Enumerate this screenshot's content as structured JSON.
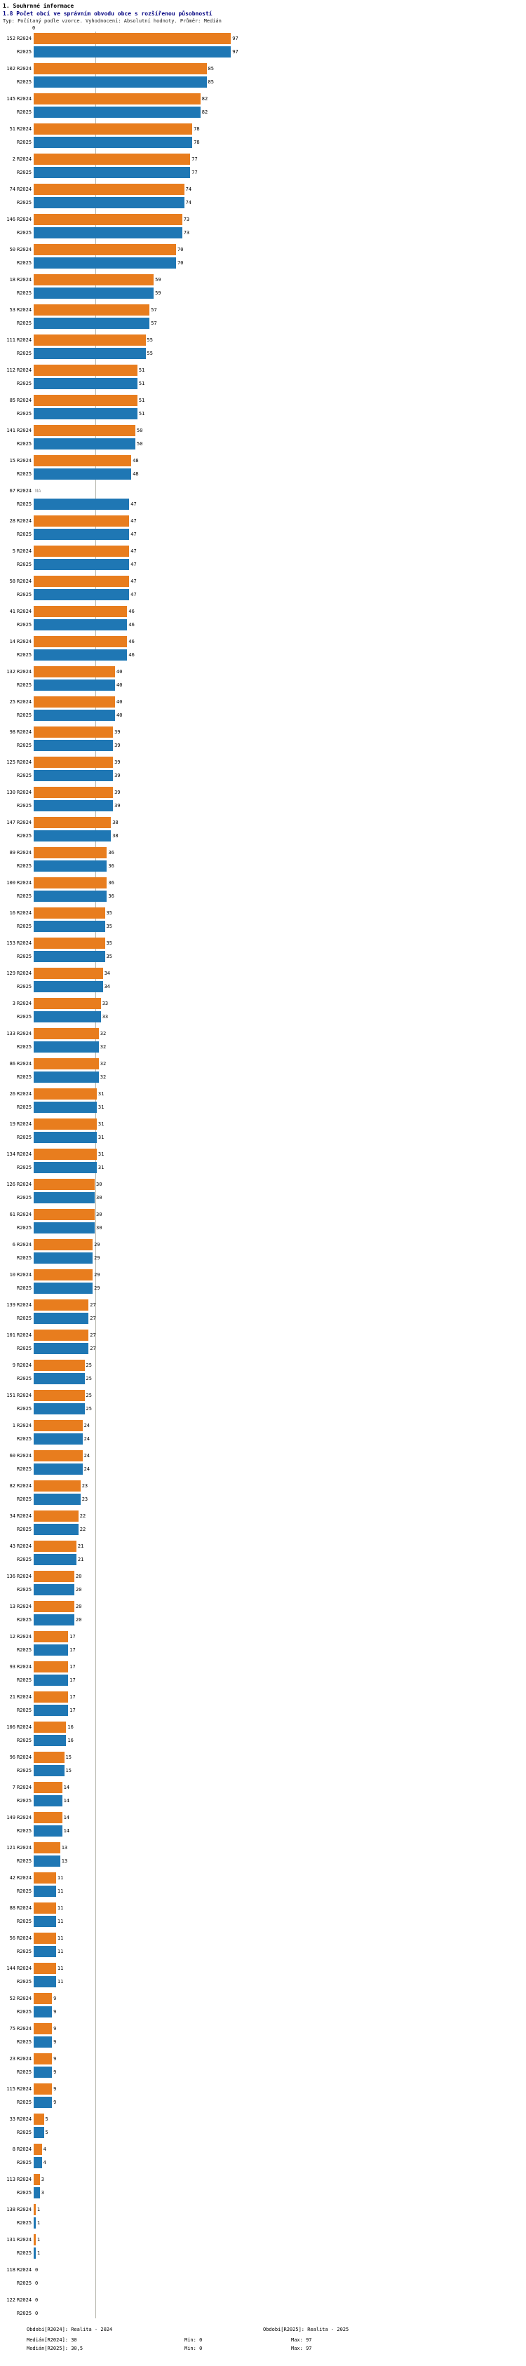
{
  "header": {
    "title": "1. Souhrnné informace",
    "subtitle": "1.8 Počet obcí ve správním obvodu obce s rozšířenou působností",
    "meta": "Typ: Počítaný podle vzorce. Vyhodnocení: Absolutní hodnoty. Průměr: Medián"
  },
  "chart_data": {
    "type": "bar",
    "orientation": "horizontal",
    "title": "1.8 Počet obcí ve správním obvodu obce s rozšířenou působností",
    "series_labels": [
      "R2024",
      "R2025"
    ],
    "colors": {
      "r2024": "#e87d1e",
      "r2025": "#1f77b4",
      "median_line": "#b4b4aa"
    },
    "axis_zero_label": "0",
    "na_label": "NA",
    "xlim": [
      0,
      97
    ],
    "median_r2024": 30,
    "median_r2025": 30.5,
    "legend_position": "bottom",
    "grid": false,
    "groups": [
      {
        "category": "152",
        "values": [
          97,
          97
        ]
      },
      {
        "category": "102",
        "values": [
          85,
          85
        ]
      },
      {
        "category": "145",
        "values": [
          82,
          82
        ]
      },
      {
        "category": "51",
        "values": [
          78,
          78
        ]
      },
      {
        "category": "2",
        "values": [
          77,
          77
        ]
      },
      {
        "category": "74",
        "values": [
          74,
          74
        ]
      },
      {
        "category": "146",
        "values": [
          73,
          73
        ]
      },
      {
        "category": "50",
        "values": [
          70,
          70
        ]
      },
      {
        "category": "18",
        "values": [
          59,
          59
        ]
      },
      {
        "category": "53",
        "values": [
          57,
          57
        ]
      },
      {
        "category": "111",
        "values": [
          55,
          55
        ]
      },
      {
        "category": "112",
        "values": [
          51,
          51
        ]
      },
      {
        "category": "85",
        "values": [
          51,
          51
        ]
      },
      {
        "category": "141",
        "values": [
          50,
          50
        ]
      },
      {
        "category": "15",
        "values": [
          48,
          48
        ]
      },
      {
        "category": "67",
        "values": [
          null,
          47
        ]
      },
      {
        "category": "28",
        "values": [
          47,
          47
        ]
      },
      {
        "category": "5",
        "values": [
          47,
          47
        ]
      },
      {
        "category": "58",
        "values": [
          47,
          47
        ]
      },
      {
        "category": "41",
        "values": [
          46,
          46
        ]
      },
      {
        "category": "14",
        "values": [
          46,
          46
        ]
      },
      {
        "category": "132",
        "values": [
          40,
          40
        ]
      },
      {
        "category": "25",
        "values": [
          40,
          40
        ]
      },
      {
        "category": "98",
        "values": [
          39,
          39
        ]
      },
      {
        "category": "125",
        "values": [
          39,
          39
        ]
      },
      {
        "category": "130",
        "values": [
          39,
          39
        ]
      },
      {
        "category": "147",
        "values": [
          38,
          38
        ]
      },
      {
        "category": "89",
        "values": [
          36,
          36
        ]
      },
      {
        "category": "100",
        "values": [
          36,
          36
        ]
      },
      {
        "category": "16",
        "values": [
          35,
          35
        ]
      },
      {
        "category": "153",
        "values": [
          35,
          35
        ]
      },
      {
        "category": "129",
        "values": [
          34,
          34
        ]
      },
      {
        "category": "3",
        "values": [
          33,
          33
        ]
      },
      {
        "category": "133",
        "values": [
          32,
          32
        ]
      },
      {
        "category": "86",
        "values": [
          32,
          32
        ]
      },
      {
        "category": "26",
        "values": [
          31,
          31
        ]
      },
      {
        "category": "19",
        "values": [
          31,
          31
        ]
      },
      {
        "category": "134",
        "values": [
          31,
          31
        ]
      },
      {
        "category": "126",
        "values": [
          30,
          30
        ]
      },
      {
        "category": "61",
        "values": [
          30,
          30
        ]
      },
      {
        "category": "6",
        "values": [
          29,
          29
        ]
      },
      {
        "category": "10",
        "values": [
          29,
          29
        ]
      },
      {
        "category": "139",
        "values": [
          27,
          27
        ]
      },
      {
        "category": "101",
        "values": [
          27,
          27
        ]
      },
      {
        "category": "9",
        "values": [
          25,
          25
        ]
      },
      {
        "category": "151",
        "values": [
          25,
          25
        ]
      },
      {
        "category": "1",
        "values": [
          24,
          24
        ]
      },
      {
        "category": "60",
        "values": [
          24,
          24
        ]
      },
      {
        "category": "82",
        "values": [
          23,
          23
        ]
      },
      {
        "category": "34",
        "values": [
          22,
          22
        ]
      },
      {
        "category": "43",
        "values": [
          21,
          21
        ]
      },
      {
        "category": "136",
        "values": [
          20,
          20
        ]
      },
      {
        "category": "13",
        "values": [
          20,
          20
        ]
      },
      {
        "category": "12",
        "values": [
          17,
          17
        ]
      },
      {
        "category": "93",
        "values": [
          17,
          17
        ]
      },
      {
        "category": "21",
        "values": [
          17,
          17
        ]
      },
      {
        "category": "106",
        "values": [
          16,
          16
        ]
      },
      {
        "category": "96",
        "values": [
          15,
          15
        ]
      },
      {
        "category": "7",
        "values": [
          14,
          14
        ]
      },
      {
        "category": "149",
        "values": [
          14,
          14
        ]
      },
      {
        "category": "121",
        "values": [
          13,
          13
        ]
      },
      {
        "category": "42",
        "values": [
          11,
          11
        ]
      },
      {
        "category": "88",
        "values": [
          11,
          11
        ]
      },
      {
        "category": "56",
        "values": [
          11,
          11
        ]
      },
      {
        "category": "144",
        "values": [
          11,
          11
        ]
      },
      {
        "category": "52",
        "values": [
          9,
          9
        ]
      },
      {
        "category": "75",
        "values": [
          9,
          9
        ]
      },
      {
        "category": "23",
        "values": [
          9,
          9
        ]
      },
      {
        "category": "115",
        "values": [
          9,
          9
        ]
      },
      {
        "category": "33",
        "values": [
          5,
          5
        ]
      },
      {
        "category": "8",
        "values": [
          4,
          4
        ]
      },
      {
        "category": "113",
        "values": [
          3,
          3
        ]
      },
      {
        "category": "138",
        "values": [
          1,
          1
        ]
      },
      {
        "category": "131",
        "values": [
          1,
          1
        ]
      },
      {
        "category": "118",
        "values": [
          0,
          0
        ]
      },
      {
        "category": "122",
        "values": [
          0,
          0
        ]
      }
    ]
  },
  "footer": {
    "period_r2024": "Období[R2024]: Realita - 2024",
    "period_r2025": "Období[R2025]: Realita - 2025",
    "stats": [
      {
        "median": "Medián[R2024]: 30",
        "min": "Min: 0",
        "max": "Max: 97"
      },
      {
        "median": "Medián[R2025]: 30,5",
        "min": "Min: 0",
        "max": "Max: 97"
      }
    ]
  }
}
